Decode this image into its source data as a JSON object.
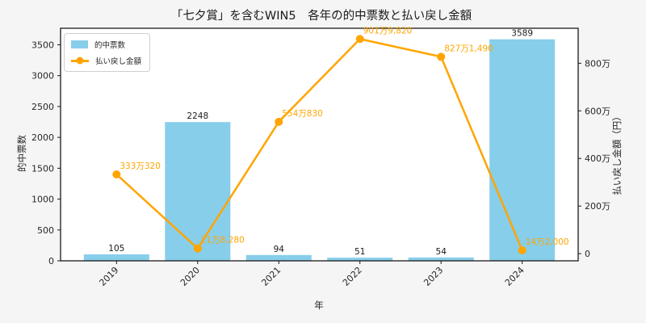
{
  "figure": {
    "background": "#f5f5f5",
    "plot_background": "#ffffff",
    "spine_color": "#1a1a1a"
  },
  "legend": {
    "items": [
      {
        "label": "的中票数",
        "type": "bar",
        "color": "#87CEEB"
      },
      {
        "label": "払い戻し金額",
        "type": "line",
        "color": "#FFA500"
      }
    ]
  },
  "chart_data": {
    "type": "bar+line",
    "title": "「七夕賞」を含むWIN5　各年の的中票数と払い戻し金額",
    "xlabel": "年",
    "ylabel_left": "的中票数",
    "ylabel_right": "払い戻し金額（円）",
    "categories": [
      "2019",
      "2020",
      "2021",
      "2022",
      "2023",
      "2024"
    ],
    "series": [
      {
        "name": "的中票数",
        "type": "bar",
        "axis": "left",
        "color": "#87CEEB",
        "values": [
          105,
          2248,
          94,
          51,
          54,
          3589
        ],
        "labels": [
          "105",
          "2248",
          "94",
          "51",
          "54",
          "3589"
        ]
      },
      {
        "name": "払い戻し金額",
        "type": "line",
        "axis": "right",
        "color": "#FFA500",
        "values": [
          3330320,
          218280,
          5540830,
          9019820,
          8271490,
          142000
        ],
        "labels": [
          "333万320",
          "21万8,280",
          "554万830",
          "901万9,820",
          "827万1,490",
          "14万2,000"
        ]
      }
    ],
    "left_axis": {
      "ticks": [
        0,
        500,
        1000,
        1500,
        2000,
        2500,
        3000,
        3500
      ],
      "tick_labels": [
        "0",
        "500",
        "1000",
        "1500",
        "2000",
        "2500",
        "3000",
        "3500"
      ],
      "lim": [
        0,
        3768
      ]
    },
    "right_axis": {
      "ticks": [
        0,
        2000000,
        4000000,
        6000000,
        8000000
      ],
      "tick_labels": [
        "0",
        "200万",
        "400万",
        "600万",
        "800万"
      ],
      "lim": [
        -300000,
        9470000
      ]
    },
    "grid": false,
    "legend_position": "upper-left"
  }
}
